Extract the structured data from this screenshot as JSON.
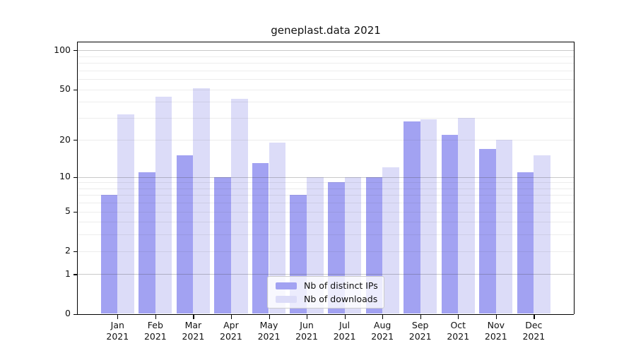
{
  "chart_data": {
    "type": "bar",
    "title": "geneplast.data 2021",
    "categories": [
      "Jan",
      "Feb",
      "Mar",
      "Apr",
      "May",
      "Jun",
      "Jul",
      "Aug",
      "Sep",
      "Oct",
      "Nov",
      "Dec"
    ],
    "category_year": "2021",
    "series": [
      {
        "name": "Nb of distinct IPs",
        "color": "#a2a2f2",
        "values": [
          7,
          11,
          15,
          10,
          13,
          7,
          9,
          10,
          28,
          22,
          17,
          11
        ]
      },
      {
        "name": "Nb of downloads",
        "color": "#dcdcf8",
        "values": [
          32,
          44,
          51,
          42,
          19,
          10,
          10,
          12,
          29,
          30,
          20,
          15
        ]
      }
    ],
    "yscale": "log1p",
    "ylim": [
      0,
      117
    ],
    "yticks": [
      100,
      50,
      20,
      10,
      5,
      2,
      1,
      0
    ],
    "major_gridlines": [
      1,
      10,
      100
    ],
    "minor_gridlines": [
      2,
      3,
      4,
      5,
      6,
      7,
      8,
      9,
      20,
      30,
      40,
      50,
      60,
      70,
      80,
      90
    ],
    "grid": true,
    "legend_position": "lower center inside axes",
    "axis_color": "#000000",
    "text_color": "#111111"
  }
}
